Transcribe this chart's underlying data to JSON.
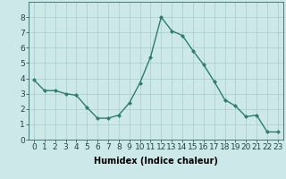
{
  "x": [
    0,
    1,
    2,
    3,
    4,
    5,
    6,
    7,
    8,
    9,
    10,
    11,
    12,
    13,
    14,
    15,
    16,
    17,
    18,
    19,
    20,
    21,
    22,
    23
  ],
  "y": [
    3.9,
    3.2,
    3.2,
    3.0,
    2.9,
    2.1,
    1.4,
    1.4,
    1.6,
    2.4,
    3.7,
    5.4,
    8.0,
    7.1,
    6.8,
    5.8,
    4.9,
    3.8,
    2.6,
    2.2,
    1.5,
    1.6,
    0.5,
    0.5
  ],
  "xlabel": "Humidex (Indice chaleur)",
  "ylim": [
    0,
    9
  ],
  "xlim_min": -0.5,
  "xlim_max": 23.5,
  "line_color": "#2e7d6e",
  "bg_color": "#cce8e8",
  "grid_color": "#aacccc",
  "xlabel_fontsize": 7,
  "tick_fontsize": 6.5,
  "marker_size": 2.0,
  "linewidth": 1.0
}
